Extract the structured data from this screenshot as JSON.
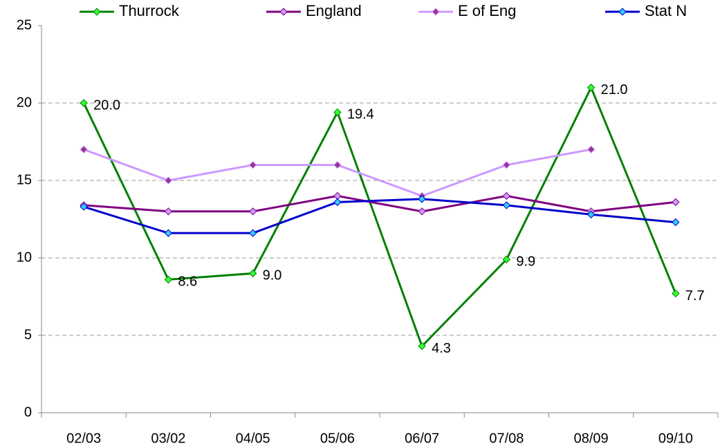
{
  "chart_data": {
    "type": "line",
    "categories": [
      "02/03",
      "03/02",
      "04/05",
      "05/06",
      "06/07",
      "07/08",
      "08/09",
      "09/10"
    ],
    "series": [
      {
        "name": "Thurrock",
        "color": "#008000",
        "marker_color": "#33ff33",
        "values": [
          20.0,
          8.6,
          9.0,
          19.4,
          4.3,
          9.9,
          21.0,
          7.7
        ],
        "value_labels": [
          "20.0",
          "8.6",
          "9.0",
          "19.4",
          "4.3",
          "9.9",
          "21.0",
          "7.7"
        ]
      },
      {
        "name": "England",
        "color": "#800080",
        "marker_color": "#cc99ff",
        "values": [
          13.4,
          13.0,
          13.0,
          14.0,
          13.0,
          14.0,
          13.0,
          13.6
        ]
      },
      {
        "name": "E of Eng",
        "color": "#cc99ff",
        "marker_color": "#993399",
        "values": [
          17,
          15,
          16,
          16,
          14,
          16,
          17,
          null
        ]
      },
      {
        "name": "Stat N",
        "color": "#0000cc",
        "marker_color": "#33ccff",
        "values": [
          13.3,
          11.6,
          11.6,
          13.6,
          13.8,
          13.4,
          12.8,
          12.3
        ]
      }
    ],
    "ylim": [
      0,
      25
    ],
    "yticks": [
      0,
      5,
      10,
      15,
      20,
      25
    ],
    "grid": true,
    "legend": "top"
  }
}
